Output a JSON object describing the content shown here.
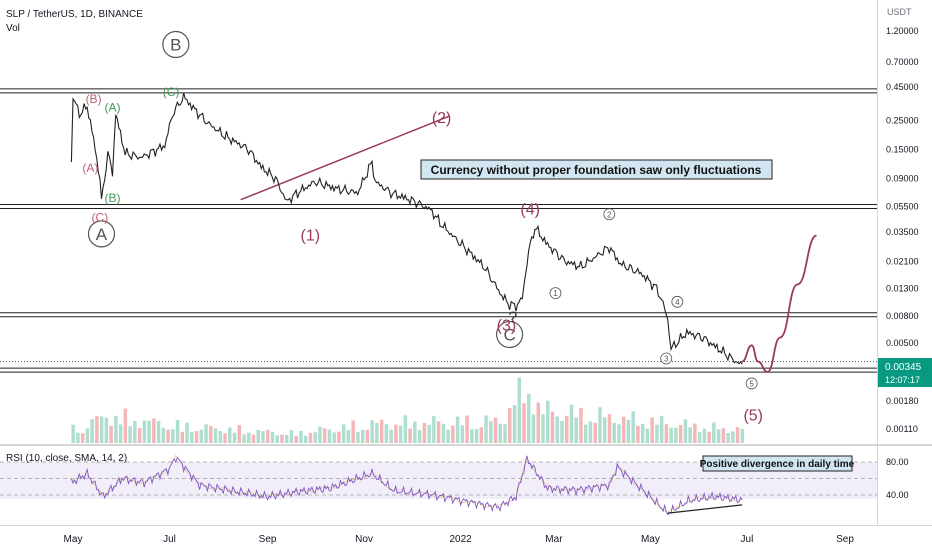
{
  "chart_data": {
    "type": "line",
    "title": "SLP / TetherUS, 1D, BINANCE",
    "subtitle": "Vol",
    "y_axis": {
      "label": "USDT",
      "scale": "log",
      "ticks": [
        "1.20000",
        "0.70000",
        "0.45000",
        "0.25000",
        "0.15000",
        "0.09000",
        "0.05500",
        "0.03500",
        "0.02100",
        "0.01300",
        "0.00800",
        "0.00500",
        "0.00180",
        "0.00110"
      ],
      "tick_values": [
        1.2,
        0.7,
        0.45,
        0.25,
        0.15,
        0.09,
        0.055,
        0.035,
        0.021,
        0.013,
        0.008,
        0.005,
        0.0018,
        0.0011
      ]
    },
    "x_axis": {
      "ticks": [
        "May",
        "Jul",
        "Sep",
        "Nov",
        "2022",
        "Mar",
        "May",
        "Jul",
        "Sep"
      ]
    },
    "last_price": "0.00345",
    "countdown": "12:07:17",
    "price_series": {
      "x": [
        "2021-04-30",
        "2021-05-01",
        "2021-05-05",
        "2021-05-10",
        "2021-05-14",
        "2021-05-18",
        "2021-05-19",
        "2021-05-23",
        "2021-05-26",
        "2021-05-28",
        "2021-06-03",
        "2021-06-13",
        "2021-06-28",
        "2021-07-03",
        "2021-07-10",
        "2021-07-15",
        "2021-07-25",
        "2021-08-05",
        "2021-08-20",
        "2021-08-28",
        "2021-09-06",
        "2021-09-13",
        "2021-09-20",
        "2021-10-01",
        "2021-10-15",
        "2021-10-28",
        "2021-11-06",
        "2021-11-08",
        "2021-11-18",
        "2021-12-03",
        "2021-12-13",
        "2021-12-20",
        "2021-12-28",
        "2022-01-06",
        "2022-01-16",
        "2022-01-26",
        "2022-01-31",
        "2022-02-05",
        "2022-02-09",
        "2022-02-13",
        "2022-02-17",
        "2022-02-25",
        "2022-03-08",
        "2022-03-18",
        "2022-03-28",
        "2022-04-05",
        "2022-04-12",
        "2022-04-25",
        "2022-05-05",
        "2022-05-09",
        "2022-05-12",
        "2022-05-14",
        "2022-05-24",
        "2022-06-03",
        "2022-06-13",
        "2022-06-24",
        "2022-06-28"
      ],
      "y": [
        0.12,
        0.38,
        0.28,
        0.32,
        0.18,
        0.09,
        0.06,
        0.14,
        0.1,
        0.28,
        0.14,
        0.13,
        0.16,
        0.28,
        0.38,
        0.32,
        0.24,
        0.19,
        0.15,
        0.11,
        0.09,
        0.06,
        0.07,
        0.085,
        0.075,
        0.07,
        0.12,
        0.085,
        0.07,
        0.06,
        0.052,
        0.04,
        0.032,
        0.025,
        0.019,
        0.012,
        0.01,
        0.0095,
        0.011,
        0.025,
        0.038,
        0.028,
        0.021,
        0.019,
        0.023,
        0.027,
        0.02,
        0.017,
        0.013,
        0.01,
        0.0075,
        0.0045,
        0.006,
        0.0055,
        0.0045,
        0.0036,
        0.0034
      ]
    },
    "projection": {
      "x": [
        "2022-06-28",
        "2022-07-04",
        "2022-07-08",
        "2022-07-14",
        "2022-07-22",
        "2022-08-02",
        "2022-08-14"
      ],
      "y": [
        0.0036,
        0.0048,
        0.0036,
        0.003,
        0.0055,
        0.014,
        0.033
      ]
    },
    "horizontal_levels": [
      0.42,
      0.055,
      0.0082,
      0.0031
    ],
    "dotted_level": 0.0036,
    "trendline": {
      "x": [
        "2021-08-15",
        "2021-12-25"
      ],
      "y": [
        0.062,
        0.27
      ]
    },
    "wave_labels": [
      {
        "text": "B",
        "style": "circle",
        "color": "#555555",
        "date": "2021-07-05",
        "price": 0.95
      },
      {
        "text": "A",
        "style": "circle",
        "color": "#555555",
        "date": "2021-05-19",
        "price": 0.034
      },
      {
        "text": "C",
        "style": "circle",
        "color": "#555555",
        "date": "2022-02-01",
        "price": 0.0058
      },
      {
        "text": "(B)",
        "color": "#c06070",
        "date": "2021-05-14",
        "price": 0.37
      },
      {
        "text": "(A)",
        "color": "#3f9b58",
        "date": "2021-05-26",
        "price": 0.32
      },
      {
        "text": "(C)",
        "color": "#3f9b58",
        "date": "2021-07-02",
        "price": 0.42
      },
      {
        "text": "(A)",
        "color": "#c06070",
        "date": "2021-05-12",
        "price": 0.11
      },
      {
        "text": "(B)",
        "color": "#3f9b58",
        "date": "2021-05-26",
        "price": 0.065
      },
      {
        "text": "(C)",
        "color": "#c06070",
        "date": "2021-05-18",
        "price": 0.046
      },
      {
        "text": "(2)",
        "color": "#9a3a5c",
        "date": "2021-12-20",
        "price": 0.26
      },
      {
        "text": "(1)",
        "color": "#9a3a5c",
        "date": "2021-09-28",
        "price": 0.033
      },
      {
        "text": "(4)",
        "color": "#9a3a5c",
        "date": "2022-02-14",
        "price": 0.052
      },
      {
        "text": "(3)",
        "color": "#9a3a5c",
        "date": "2022-01-30",
        "price": 0.0068
      },
      {
        "text": "?",
        "color": "#333333",
        "date": "2022-02-03",
        "price": 0.0078
      },
      {
        "text": "(5)",
        "color": "#9a3a5c",
        "date": "2022-07-05",
        "price": 0.0014
      },
      {
        "text": "1",
        "style": "small-circle",
        "color": "#555555",
        "date": "2022-03-02",
        "price": 0.012
      },
      {
        "text": "2",
        "style": "small-circle",
        "color": "#555555",
        "date": "2022-04-05",
        "price": 0.048
      },
      {
        "text": "3",
        "style": "small-circle",
        "color": "#555555",
        "date": "2022-05-11",
        "price": 0.0038
      },
      {
        "text": "4",
        "style": "small-circle",
        "color": "#555555",
        "date": "2022-05-18",
        "price": 0.0103
      },
      {
        "text": "5",
        "style": "small-circle",
        "color": "#555555",
        "date": "2022-07-04",
        "price": 0.00245
      }
    ],
    "annotation_main": "Currency without proper foundation saw only fluctuations",
    "rsi": {
      "label": "RSI (10, close, SMA, 14, 2)",
      "ticks": [
        "80.00",
        "40.00"
      ],
      "tick_values": [
        80,
        40
      ],
      "x": [
        "2021-04-30",
        "2021-05-10",
        "2021-05-20",
        "2021-06-01",
        "2021-06-15",
        "2021-07-01",
        "2021-07-05",
        "2021-07-20",
        "2021-08-10",
        "2021-09-01",
        "2021-09-20",
        "2021-10-10",
        "2021-11-06",
        "2021-11-20",
        "2021-12-15",
        "2022-01-05",
        "2022-01-25",
        "2022-02-05",
        "2022-02-12",
        "2022-02-25",
        "2022-03-15",
        "2022-04-05",
        "2022-04-10",
        "2022-04-25",
        "2022-05-12",
        "2022-05-25",
        "2022-06-10",
        "2022-06-28"
      ],
      "y": [
        55,
        66,
        38,
        60,
        55,
        72,
        86,
        52,
        45,
        38,
        44,
        48,
        66,
        45,
        40,
        32,
        25,
        38,
        84,
        48,
        46,
        52,
        74,
        48,
        18,
        33,
        38,
        34
      ],
      "divergence_line": {
        "x": [
          "2022-05-12",
          "2022-06-28"
        ],
        "y": [
          18,
          28
        ]
      },
      "annotation": "Positive divergence in daily time"
    },
    "volume": {
      "x": [
        "2021-05-05",
        "2021-05-20",
        "2021-07-05",
        "2021-09-15",
        "2021-11-08",
        "2022-01-25",
        "2022-02-10",
        "2022-02-20",
        "2022-04-10",
        "2022-05-10",
        "2022-06-15"
      ],
      "y": [
        0.18,
        0.35,
        0.22,
        0.12,
        0.25,
        0.28,
        0.72,
        0.42,
        0.32,
        0.26,
        0.18
      ]
    }
  }
}
